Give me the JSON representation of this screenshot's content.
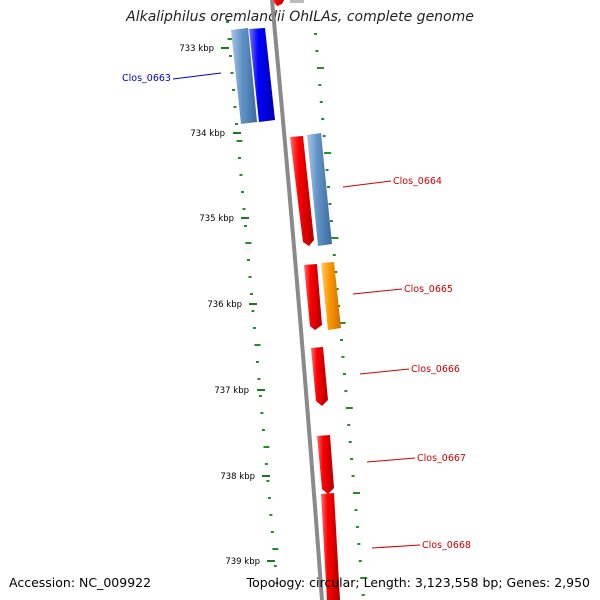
{
  "title": "Alkaliphilus oremlandii OhILAs, complete genome",
  "accession": "Accession: NC_009922",
  "summary": "Topology: circular; Length: 3,123,558 bp; Genes: 2,950",
  "colors": {
    "backbone": "#888888",
    "gc_ticks": "#2a8a2a",
    "red_gene": "#ee0000",
    "blue_gene": "#0000ee",
    "steel_gene": "#5f8fc0",
    "orange_gene": "#ff9900",
    "label_red": "#cc0000",
    "label_blue": "#0000cc"
  },
  "kbp_ticks": [
    "733 kbp",
    "734 kbp",
    "735 kbp",
    "736 kbp",
    "737 kbp",
    "738 kbp",
    "739 kbp"
  ],
  "gene_labels": [
    {
      "text": "Clos_0663",
      "color": "blue"
    },
    {
      "text": "Clos_0664",
      "color": "red"
    },
    {
      "text": "Clos_0665",
      "color": "red"
    },
    {
      "text": "Clos_0666",
      "color": "red"
    },
    {
      "text": "Clos_0667",
      "color": "red"
    },
    {
      "text": "Clos_0668",
      "color": "red"
    }
  ]
}
